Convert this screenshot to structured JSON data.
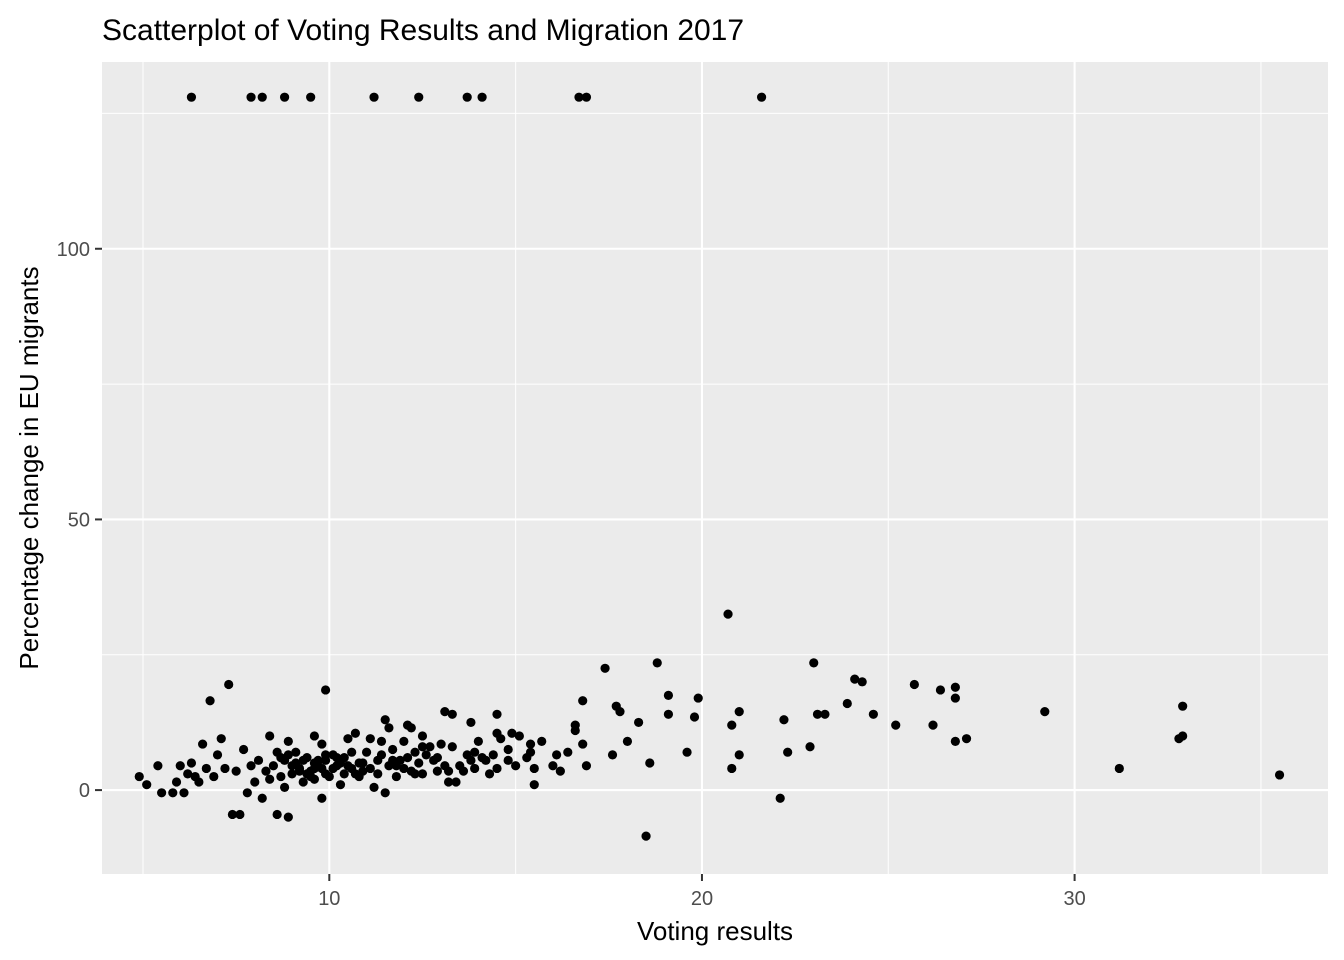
{
  "chart_data": {
    "type": "scatter",
    "title": "Scatterplot of Voting Results and Migration 2017",
    "xlabel": "Voting results",
    "ylabel": "Percentage change in EU migrants",
    "xlim": [
      3.9,
      36.8
    ],
    "ylim": [
      -15.5,
      134.5
    ],
    "x_ticks": [
      10,
      20,
      30
    ],
    "y_ticks": [
      0,
      50,
      100
    ],
    "x_tick_labels": [
      "10",
      "20",
      "30"
    ],
    "y_tick_labels": [
      "0",
      "50",
      "100"
    ],
    "grid": true,
    "legend": "none",
    "colors": {
      "panel": "#ebebeb",
      "grid": "#ffffff",
      "point": "#000000"
    },
    "points": [
      [
        6.3,
        128
      ],
      [
        7.9,
        128
      ],
      [
        8.2,
        128
      ],
      [
        8.8,
        128
      ],
      [
        9.5,
        128
      ],
      [
        11.2,
        128
      ],
      [
        12.4,
        128
      ],
      [
        13.7,
        128
      ],
      [
        14.1,
        128
      ],
      [
        16.7,
        128
      ],
      [
        16.9,
        128
      ],
      [
        21.6,
        128
      ],
      [
        20.7,
        32.5
      ],
      [
        17.4,
        22.5
      ],
      [
        18.8,
        23.5
      ],
      [
        23.0,
        23.5
      ],
      [
        24.1,
        20.5
      ],
      [
        24.3,
        20.0
      ],
      [
        25.7,
        19.5
      ],
      [
        26.4,
        18.5
      ],
      [
        26.8,
        19.0
      ],
      [
        26.8,
        17.0
      ],
      [
        19.1,
        17.5
      ],
      [
        19.9,
        17.0
      ],
      [
        16.8,
        16.5
      ],
      [
        17.7,
        15.5
      ],
      [
        17.8,
        14.5
      ],
      [
        18.3,
        12.5
      ],
      [
        19.1,
        14.0
      ],
      [
        19.8,
        13.5
      ],
      [
        21.0,
        14.5
      ],
      [
        20.8,
        12.0
      ],
      [
        22.2,
        13.0
      ],
      [
        23.1,
        14.0
      ],
      [
        23.3,
        14.0
      ],
      [
        23.9,
        16.0
      ],
      [
        24.6,
        14.0
      ],
      [
        25.2,
        12.0
      ],
      [
        26.2,
        12.0
      ],
      [
        26.8,
        9.0
      ],
      [
        27.1,
        9.5
      ],
      [
        29.2,
        14.5
      ],
      [
        32.8,
        9.5
      ],
      [
        32.9,
        15.5
      ],
      [
        32.9,
        10.0
      ],
      [
        31.2,
        4.0
      ],
      [
        35.5,
        2.8
      ],
      [
        21.0,
        6.5
      ],
      [
        22.3,
        7.0
      ],
      [
        22.9,
        8.0
      ],
      [
        20.8,
        4.0
      ],
      [
        19.6,
        7.0
      ],
      [
        18.6,
        5.0
      ],
      [
        18.5,
        -8.5
      ],
      [
        22.1,
        -1.5
      ],
      [
        17.6,
        6.5
      ],
      [
        18.0,
        9.0
      ],
      [
        16.6,
        12.0
      ],
      [
        16.6,
        11.0
      ],
      [
        16.8,
        8.5
      ],
      [
        16.9,
        4.5
      ],
      [
        16.4,
        7.0
      ],
      [
        16.1,
        6.5
      ],
      [
        16.0,
        4.5
      ],
      [
        16.2,
        3.5
      ],
      [
        15.7,
        9.0
      ],
      [
        15.4,
        8.5
      ],
      [
        15.4,
        7.0
      ],
      [
        15.5,
        4.0
      ],
      [
        15.5,
        1.0
      ],
      [
        15.1,
        10.0
      ],
      [
        14.9,
        10.5
      ],
      [
        14.8,
        7.5
      ],
      [
        14.5,
        10.5
      ],
      [
        14.5,
        14.0
      ],
      [
        14.5,
        4.0
      ],
      [
        14.6,
        9.5
      ],
      [
        14.1,
        6.0
      ],
      [
        14.2,
        5.5
      ],
      [
        14.0,
        9.0
      ],
      [
        13.9,
        7.0
      ],
      [
        13.9,
        4.0
      ],
      [
        13.8,
        12.5
      ],
      [
        13.6,
        3.5
      ],
      [
        13.7,
        6.5
      ],
      [
        13.3,
        14.0
      ],
      [
        13.1,
        14.5
      ],
      [
        13.0,
        8.5
      ],
      [
        12.9,
        6.0
      ],
      [
        13.2,
        3.5
      ],
      [
        13.2,
        1.5
      ],
      [
        12.7,
        8.0
      ],
      [
        12.5,
        10.0
      ],
      [
        12.5,
        8.0
      ],
      [
        12.3,
        7.0
      ],
      [
        12.2,
        11.5
      ],
      [
        12.1,
        12.0
      ],
      [
        12.1,
        6.0
      ],
      [
        12.0,
        9.0
      ],
      [
        12.0,
        4.0
      ],
      [
        11.8,
        2.5
      ],
      [
        11.7,
        5.5
      ],
      [
        11.6,
        11.5
      ],
      [
        11.5,
        13.0
      ],
      [
        11.4,
        9.0
      ],
      [
        11.3,
        5.5
      ],
      [
        11.3,
        3.0
      ],
      [
        11.2,
        0.5
      ],
      [
        11.1,
        9.5
      ],
      [
        11.0,
        7.0
      ],
      [
        10.9,
        5.0
      ],
      [
        10.8,
        2.5
      ],
      [
        10.7,
        10.5
      ],
      [
        10.6,
        7.0
      ],
      [
        10.5,
        4.5
      ],
      [
        10.4,
        3.0
      ],
      [
        10.3,
        1.0
      ],
      [
        10.2,
        6.0
      ],
      [
        10.1,
        4.0
      ],
      [
        10.0,
        2.5
      ],
      [
        9.9,
        18.5
      ],
      [
        9.9,
        6.5
      ],
      [
        9.8,
        8.5
      ],
      [
        9.7,
        4.5
      ],
      [
        9.6,
        2.0
      ],
      [
        9.6,
        10.0
      ],
      [
        9.5,
        3.5
      ],
      [
        9.4,
        6.0
      ],
      [
        9.3,
        5.5
      ],
      [
        9.3,
        1.5
      ],
      [
        9.2,
        4.0
      ],
      [
        9.1,
        7.0
      ],
      [
        9.0,
        3.0
      ],
      [
        8.9,
        9.0
      ],
      [
        8.8,
        5.5
      ],
      [
        8.8,
        0.5
      ],
      [
        8.7,
        2.5
      ],
      [
        8.6,
        7.0
      ],
      [
        8.5,
        4.5
      ],
      [
        8.4,
        10.0
      ],
      [
        8.3,
        3.5
      ],
      [
        8.2,
        -1.5
      ],
      [
        8.1,
        5.5
      ],
      [
        8.0,
        1.5
      ],
      [
        7.9,
        4.5
      ],
      [
        7.8,
        -0.5
      ],
      [
        7.7,
        7.5
      ],
      [
        7.5,
        3.5
      ],
      [
        7.4,
        -4.5
      ],
      [
        7.3,
        19.5
      ],
      [
        7.2,
        4.0
      ],
      [
        7.1,
        9.5
      ],
      [
        7.0,
        6.5
      ],
      [
        6.9,
        2.5
      ],
      [
        6.8,
        16.5
      ],
      [
        6.7,
        4.0
      ],
      [
        6.6,
        8.5
      ],
      [
        6.5,
        1.5
      ],
      [
        6.4,
        2.5
      ],
      [
        6.3,
        5.0
      ],
      [
        6.2,
        3.0
      ],
      [
        6.1,
        -0.5
      ],
      [
        6.0,
        4.5
      ],
      [
        5.9,
        1.5
      ],
      [
        5.8,
        -0.5
      ],
      [
        5.5,
        -0.5
      ],
      [
        5.4,
        4.5
      ],
      [
        5.1,
        1.0
      ],
      [
        4.9,
        2.5
      ],
      [
        7.6,
        -4.5
      ],
      [
        8.6,
        -4.5
      ],
      [
        8.9,
        -5.0
      ],
      [
        9.8,
        -1.5
      ],
      [
        11.5,
        -0.5
      ],
      [
        12.5,
        3.0
      ],
      [
        13.4,
        1.5
      ],
      [
        14.3,
        3.0
      ],
      [
        15.0,
        4.5
      ],
      [
        10.5,
        9.5
      ],
      [
        11.9,
        5.5
      ],
      [
        12.8,
        5.5
      ],
      [
        13.5,
        4.5
      ],
      [
        9.4,
        3.0
      ],
      [
        9.7,
        5.5
      ],
      [
        9.9,
        3.0
      ],
      [
        10.3,
        5.0
      ],
      [
        10.8,
        5.0
      ],
      [
        11.6,
        4.5
      ],
      [
        12.3,
        3.0
      ],
      [
        12.9,
        3.5
      ],
      [
        8.9,
        6.5
      ],
      [
        9.1,
        5.0
      ],
      [
        9.5,
        2.5
      ],
      [
        10.1,
        6.5
      ],
      [
        10.6,
        4.0
      ],
      [
        11.1,
        4.0
      ],
      [
        11.7,
        7.5
      ],
      [
        12.4,
        5.0
      ],
      [
        13.1,
        4.5
      ],
      [
        13.8,
        5.5
      ],
      [
        14.8,
        5.5
      ],
      [
        15.3,
        6.0
      ],
      [
        8.4,
        2.0
      ],
      [
        8.7,
        6.0
      ],
      [
        9.0,
        4.5
      ],
      [
        9.6,
        5.0
      ],
      [
        10.4,
        6.0
      ],
      [
        11.4,
        6.5
      ],
      [
        12.6,
        6.5
      ],
      [
        13.3,
        8.0
      ],
      [
        14.4,
        6.5
      ],
      [
        9.2,
        3.5
      ],
      [
        9.8,
        4.0
      ],
      [
        10.2,
        4.5
      ],
      [
        10.9,
        3.5
      ],
      [
        11.8,
        4.5
      ],
      [
        12.2,
        3.5
      ],
      [
        9.6,
        4.0
      ],
      [
        9.9,
        5.5
      ],
      [
        10.7,
        3.0
      ]
    ]
  }
}
